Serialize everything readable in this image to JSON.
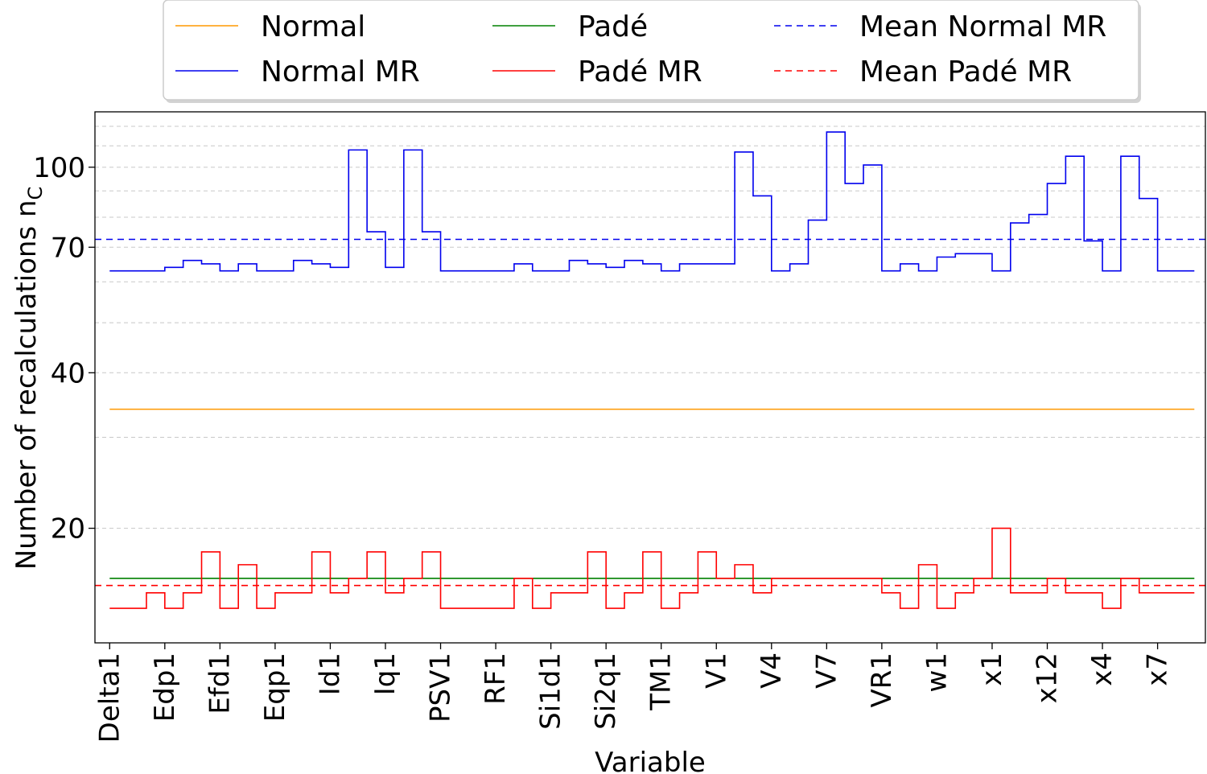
{
  "chart_data": {
    "type": "line",
    "step": "post",
    "xlabel": "Variable",
    "ylabel": "Number of recalculations n",
    "ylabel_subscript": "C",
    "yscale": "log",
    "ylim": [
      12,
      128
    ],
    "yticks": [
      20,
      40,
      70,
      100
    ],
    "xtick_labels": [
      "Delta1",
      "Edp1",
      "Efd1",
      "Eqp1",
      "Id1",
      "Iq1",
      "PSV1",
      "RF1",
      "Si1d1",
      "Si2q1",
      "TM1",
      "V1",
      "V4",
      "V7",
      "VR1",
      "w1",
      "x1",
      "x12",
      "x4",
      "x7"
    ],
    "xtick_positions": [
      0,
      3,
      6,
      9,
      12,
      15,
      18,
      21,
      24,
      27,
      30,
      33,
      36,
      39,
      42,
      45,
      48,
      51,
      54,
      57
    ],
    "xlim": [
      -0.8,
      59.6
    ],
    "x_end": 59,
    "grid": "horizontal dashed",
    "legend_position": "top, outside plot, 3 columns",
    "series": [
      {
        "name": "Normal",
        "color": "#ff9900",
        "style": "solid",
        "values": [
          34,
          34,
          34,
          34,
          34,
          34,
          34,
          34,
          34,
          34,
          34,
          34,
          34,
          34,
          34,
          34,
          34,
          34,
          34,
          34,
          34,
          34,
          34,
          34,
          34,
          34,
          34,
          34,
          34,
          34,
          34,
          34,
          34,
          34,
          34,
          34,
          34,
          34,
          34,
          34,
          34,
          34,
          34,
          34,
          34,
          34,
          34,
          34,
          34,
          34,
          34,
          34,
          34,
          34,
          34,
          34,
          34,
          34,
          34
        ]
      },
      {
        "name": "Normal MR",
        "color": "#0000ee",
        "style": "solid",
        "values": [
          63,
          63,
          63,
          64,
          66,
          65,
          63,
          65,
          63,
          63,
          66,
          65,
          64,
          108,
          75,
          64,
          108,
          75,
          63,
          63,
          63,
          63,
          65,
          63,
          63,
          66,
          65,
          64,
          66,
          65,
          63,
          65,
          65,
          65,
          107,
          88,
          63,
          65,
          79,
          117,
          93,
          101,
          63,
          65,
          63,
          67,
          68,
          68,
          63,
          78,
          81,
          93,
          105,
          72,
          63,
          105,
          87,
          63,
          63
        ]
      },
      {
        "name": "Padé",
        "color": "#008000",
        "style": "solid",
        "values": [
          16,
          16,
          16,
          16,
          16,
          16,
          16,
          16,
          16,
          16,
          16,
          16,
          16,
          16,
          16,
          16,
          16,
          16,
          16,
          16,
          16,
          16,
          16,
          16,
          16,
          16,
          16,
          16,
          16,
          16,
          16,
          16,
          16,
          16,
          16,
          16,
          16,
          16,
          16,
          16,
          16,
          16,
          16,
          16,
          16,
          16,
          16,
          16,
          16,
          16,
          16,
          16,
          16,
          16,
          16,
          16,
          16,
          16,
          16
        ]
      },
      {
        "name": "Padé MR",
        "color": "#ff0000",
        "style": "solid",
        "values": [
          14,
          14,
          15,
          14,
          15,
          18,
          14,
          17,
          14,
          15,
          15,
          18,
          15,
          16,
          18,
          15,
          16,
          18,
          14,
          14,
          14,
          14,
          16,
          14,
          15,
          15,
          18,
          14,
          15,
          18,
          14,
          15,
          18,
          16,
          17,
          15,
          16,
          16,
          16,
          16,
          16,
          16,
          15,
          14,
          17,
          14,
          15,
          16,
          20,
          15,
          15,
          16,
          15,
          15,
          14,
          16,
          15,
          15,
          15
        ]
      },
      {
        "name": "Mean Normal MR",
        "color": "#0000ee",
        "style": "dashed",
        "constant": 72.5
      },
      {
        "name": "Mean Padé MR",
        "color": "#ff0000",
        "style": "dashed",
        "constant": 15.5
      }
    ]
  }
}
